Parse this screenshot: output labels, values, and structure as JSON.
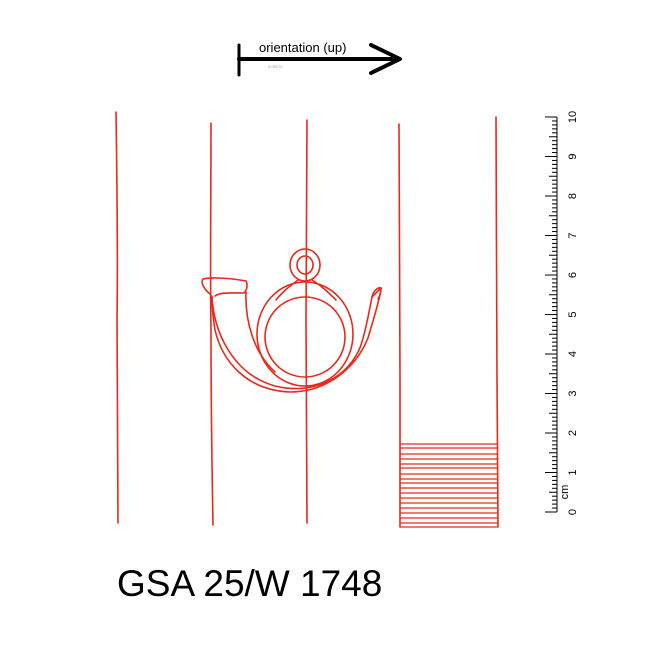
{
  "orientation": {
    "label": "orientation (up)",
    "stamp": "0.09072"
  },
  "scale": {
    "unit": "cm",
    "labels": [
      "0",
      "1",
      "2",
      "3",
      "4",
      "5",
      "6",
      "7",
      "8",
      "9",
      "10"
    ]
  },
  "catalog": {
    "id": "GSA 25/W 1748"
  },
  "colors": {
    "tracing": "#e8291b",
    "ink": "#000000"
  }
}
